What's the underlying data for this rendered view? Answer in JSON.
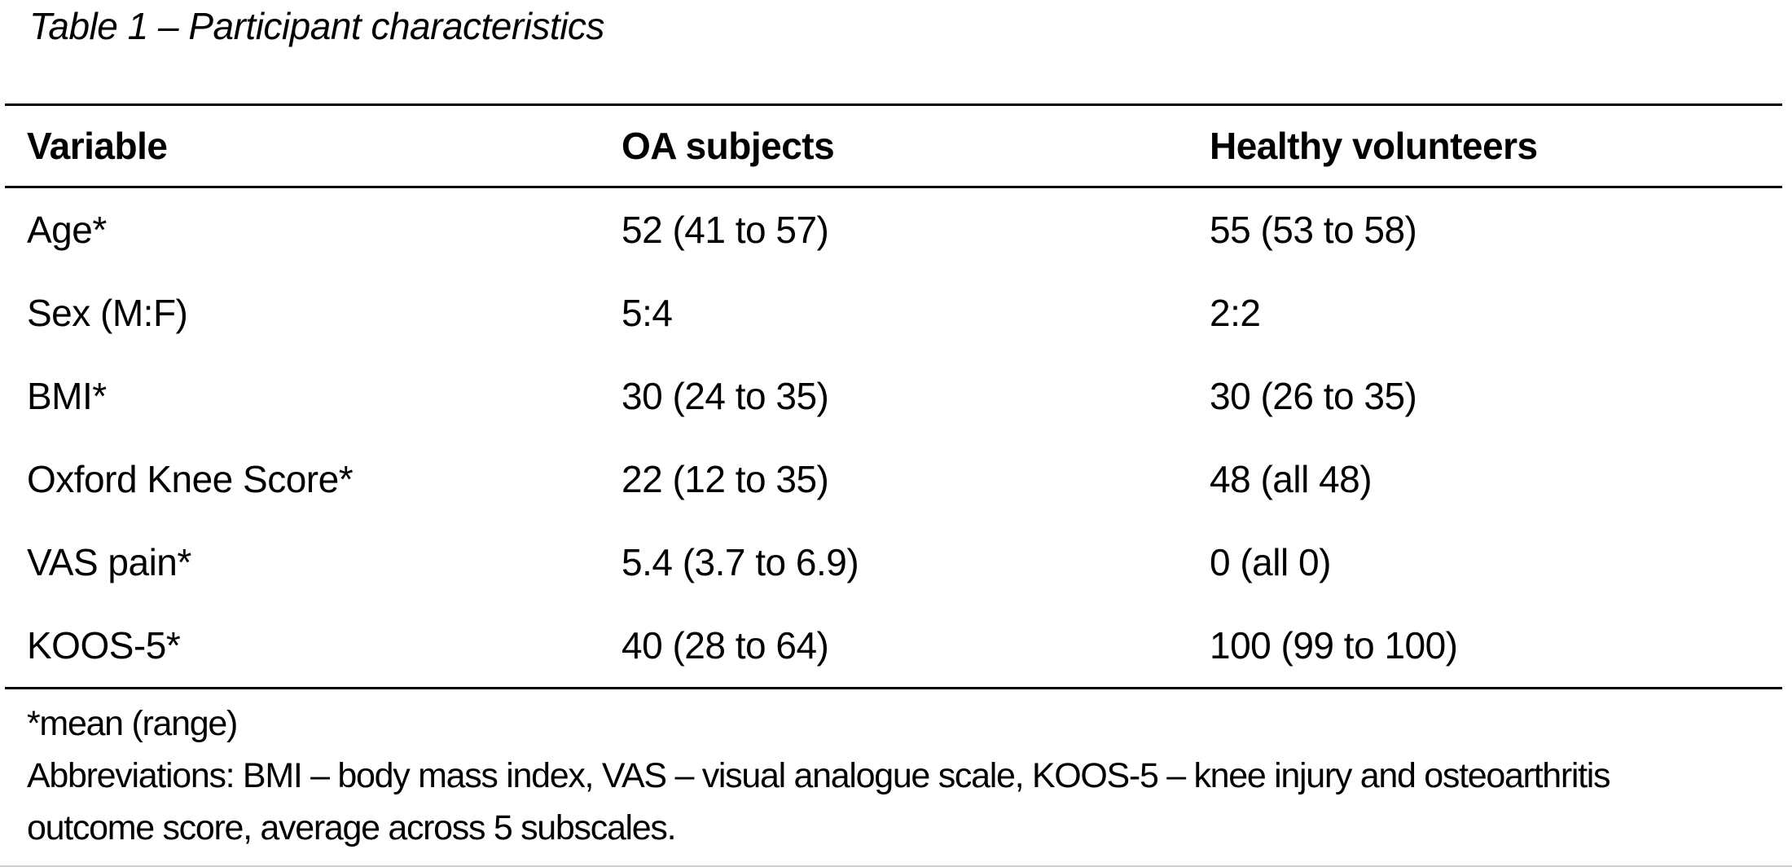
{
  "title": "Table 1 – Participant characteristics",
  "table": {
    "columns": [
      "Variable",
      "OA subjects",
      "Healthy volunteers"
    ],
    "rows": [
      {
        "variable": "Age*",
        "oa_subjects": "52 (41 to 57)",
        "healthy_volunteers": "55 (53 to 58)"
      },
      {
        "variable": "Sex (M:F)",
        "oa_subjects": "5:4",
        "healthy_volunteers": "2:2"
      },
      {
        "variable": "BMI*",
        "oa_subjects": "30 (24 to 35)",
        "healthy_volunteers": "30 (26 to 35)"
      },
      {
        "variable": "Oxford Knee Score*",
        "oa_subjects": "22 (12 to 35)",
        "healthy_volunteers": "48 (all 48)"
      },
      {
        "variable": "VAS pain*",
        "oa_subjects": "5.4 (3.7 to 6.9)",
        "healthy_volunteers": "0 (all 0)"
      },
      {
        "variable": "KOOS-5*",
        "oa_subjects": "40 (28 to 64)",
        "healthy_volunteers": "100 (99 to 100)"
      }
    ]
  },
  "footnotes": {
    "lines": [
      "*mean (range)",
      "Abbreviations: BMI – body mass index, VAS – visual analogue scale, KOOS-5 – knee injury and osteoarthritis",
      "outcome score, average across 5 subscales."
    ],
    "full_abbreviations_text": "Abbreviations: BMI – body mass index, VAS – visual analogue scale, KOOS-5 – knee injury and osteoarthritis outcome score, average across 5 subscales."
  },
  "colors": {
    "text": "#000000",
    "rule": "#000000",
    "background": "#ffffff",
    "page_edge": "#cfcfcf"
  }
}
